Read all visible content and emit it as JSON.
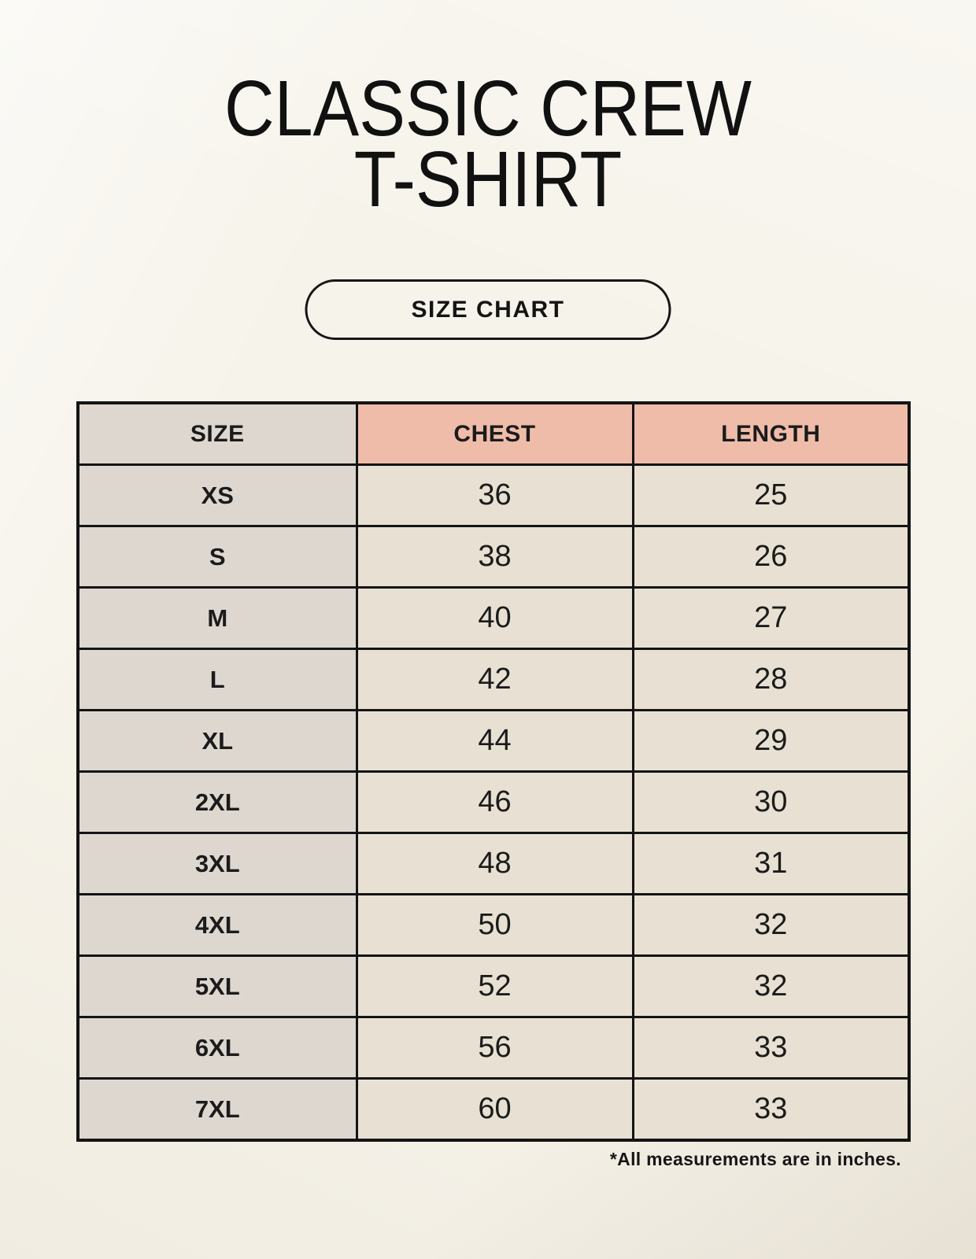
{
  "page": {
    "title_line1": "CLASSIC CREW",
    "title_line2": "T-SHIRT",
    "button_label": "SIZE CHART",
    "footnote": "*All measurements are in inches."
  },
  "colors": {
    "background": "#f6f3ea",
    "header_accent": "#efbcaa",
    "size_column": "#ded7d0",
    "data_cell": "#e8e1d3",
    "border": "#141414",
    "text": "#1b1b1b"
  },
  "table": {
    "headers": [
      "SIZE",
      "CHEST",
      "LENGTH"
    ],
    "rows": [
      [
        "XS",
        "36",
        "25"
      ],
      [
        "S",
        "38",
        "26"
      ],
      [
        "M",
        "40",
        "27"
      ],
      [
        "L",
        "42",
        "28"
      ],
      [
        "XL",
        "44",
        "29"
      ],
      [
        "2XL",
        "46",
        "30"
      ],
      [
        "3XL",
        "48",
        "31"
      ],
      [
        "4XL",
        "50",
        "32"
      ],
      [
        "5XL",
        "52",
        "32"
      ],
      [
        "6XL",
        "56",
        "33"
      ],
      [
        "7XL",
        "60",
        "33"
      ]
    ],
    "units": "inches"
  },
  "chart_data": {
    "type": "table",
    "title": "CLASSIC CREW T-SHIRT SIZE CHART",
    "columns": [
      "SIZE",
      "CHEST",
      "LENGTH"
    ],
    "rows": [
      {
        "size": "XS",
        "chest": 36,
        "length": 25
      },
      {
        "size": "S",
        "chest": 38,
        "length": 26
      },
      {
        "size": "M",
        "chest": 40,
        "length": 27
      },
      {
        "size": "L",
        "chest": 42,
        "length": 28
      },
      {
        "size": "XL",
        "chest": 44,
        "length": 29
      },
      {
        "size": "2XL",
        "chest": 46,
        "length": 30
      },
      {
        "size": "3XL",
        "chest": 48,
        "length": 31
      },
      {
        "size": "4XL",
        "chest": 50,
        "length": 32
      },
      {
        "size": "5XL",
        "chest": 52,
        "length": 32
      },
      {
        "size": "6XL",
        "chest": 56,
        "length": 33
      },
      {
        "size": "7XL",
        "chest": 60,
        "length": 33
      }
    ],
    "units": "inches",
    "note": "*All measurements are in inches."
  }
}
